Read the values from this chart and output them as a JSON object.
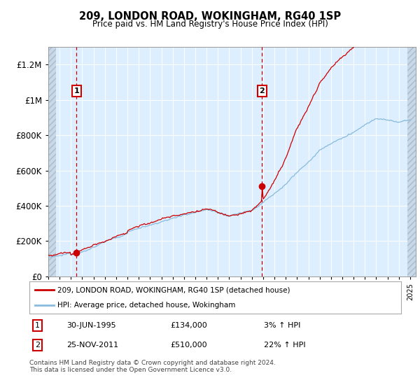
{
  "title": "209, LONDON ROAD, WOKINGHAM, RG40 1SP",
  "subtitle": "Price paid vs. HM Land Registry's House Price Index (HPI)",
  "ylim": [
    0,
    1300000
  ],
  "yticks": [
    0,
    200000,
    400000,
    600000,
    800000,
    1000000,
    1200000
  ],
  "ytick_labels": [
    "£0",
    "£200K",
    "£400K",
    "£600K",
    "£800K",
    "£1M",
    "£1.2M"
  ],
  "sale1_x": 1995.5,
  "sale1_price": 134000,
  "sale2_x": 2011.9,
  "sale2_price": 510000,
  "line_color_red": "#cc0000",
  "line_color_blue": "#88bbdd",
  "bg_color": "#ddeeff",
  "hatch_color": "#c8d8e8",
  "legend_label_red": "209, LONDON ROAD, WOKINGHAM, RG40 1SP (detached house)",
  "legend_label_blue": "HPI: Average price, detached house, Wokingham",
  "note1_label": "1",
  "note1_date": "30-JUN-1995",
  "note1_price": "£134,000",
  "note1_pct": "3% ↑ HPI",
  "note2_label": "2",
  "note2_date": "25-NOV-2011",
  "note2_price": "£510,000",
  "note2_pct": "22% ↑ HPI",
  "footer": "Contains HM Land Registry data © Crown copyright and database right 2024.\nThis data is licensed under the Open Government Licence v3.0.",
  "xmin": 1993.0,
  "xmax": 2025.5,
  "hatch_left_end": 1993.7,
  "hatch_right_start": 2024.75
}
